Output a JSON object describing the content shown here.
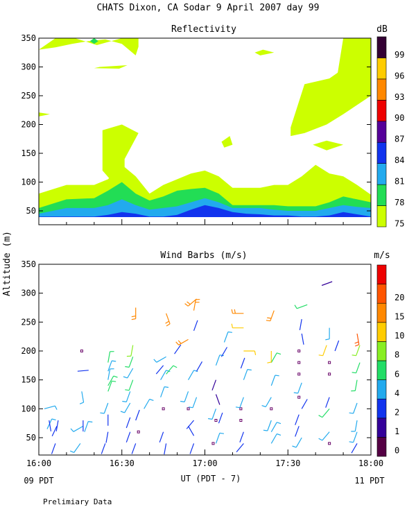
{
  "title": "CHATS Dixon, CA  Sodar   9 April 2007  day  99",
  "y_axis_label": "Altitude (m)",
  "footer": "Prelimiary Data",
  "chart_data": [
    {
      "type": "heatmap",
      "title": "Reflectivity",
      "units_label": "dB",
      "xlim": [
        "16:00",
        "18:00"
      ],
      "ylim": [
        25,
        350
      ],
      "y_ticks": [
        "50",
        "100",
        "150",
        "200",
        "250",
        "300",
        "350"
      ],
      "colorbar": {
        "labels": [
          "75",
          "78",
          "81",
          "84",
          "87",
          "90",
          "93",
          "96",
          "99"
        ],
        "colors": [
          "#ccff00",
          "#22dd55",
          "#22aaee",
          "#1133ee",
          "#550099",
          "#ee0000",
          "#ff8800",
          "#ffcc00",
          "#330033"
        ]
      },
      "profile_times_min": [
        0,
        10,
        20,
        25,
        30,
        35,
        40,
        45,
        50,
        55,
        60,
        65,
        70,
        75,
        80,
        85,
        90,
        95,
        100,
        105,
        110,
        115,
        120
      ],
      "level_tops_m": [
        {
          "level": "75",
          "values": [
            80,
            95,
            95,
            105,
            130,
            110,
            80,
            95,
            105,
            115,
            120,
            110,
            90,
            90,
            90,
            95,
            95,
            110,
            130,
            115,
            110,
            95,
            78
          ]
        },
        {
          "level": "78",
          "values": [
            55,
            70,
            72,
            85,
            100,
            80,
            68,
            75,
            85,
            88,
            90,
            80,
            60,
            60,
            60,
            60,
            58,
            58,
            58,
            65,
            75,
            70,
            65
          ]
        },
        {
          "level": "81",
          "values": [
            45,
            55,
            55,
            60,
            70,
            60,
            52,
            55,
            58,
            65,
            72,
            65,
            55,
            55,
            55,
            52,
            50,
            50,
            50,
            55,
            60,
            57,
            55
          ]
        },
        {
          "level": "84",
          "values": [
            40,
            40,
            40,
            43,
            48,
            45,
            40,
            40,
            43,
            52,
            60,
            55,
            48,
            45,
            44,
            42,
            42,
            40,
            40,
            42,
            48,
            44,
            40
          ]
        }
      ],
      "patches_75dB": [
        {
          "t_min": [
            0,
            6,
            13,
            21,
            30,
            36,
            36,
            35,
            30,
            24,
            18,
            12,
            6,
            0
          ],
          "alt_m": [
            330,
            350,
            350,
            338,
            350,
            350,
            335,
            320,
            340,
            348,
            345,
            340,
            334,
            330
          ]
        },
        {
          "t_min": [
            22,
            32,
            29,
            20
          ],
          "alt_m": [
            300,
            303,
            297,
            298
          ]
        },
        {
          "t_min": [
            0,
            4,
            0
          ],
          "alt_m": [
            221,
            218,
            214
          ]
        },
        {
          "t_min": [
            23,
            30,
            36,
            31,
            31,
            27,
            23,
            23
          ],
          "alt_m": [
            190,
            200,
            185,
            140,
            105,
            98,
            120,
            175
          ]
        },
        {
          "t_min": [
            66,
            69,
            70,
            67
          ],
          "alt_m": [
            170,
            180,
            165,
            160
          ]
        },
        {
          "t_min": [
            78,
            81,
            85,
            80
          ],
          "alt_m": [
            325,
            330,
            325,
            320
          ]
        },
        {
          "t_min": [
            91,
            96,
            105,
            108,
            110,
            120,
            120,
            110,
            104,
            96,
            91
          ],
          "alt_m": [
            195,
            270,
            280,
            290,
            350,
            350,
            250,
            218,
            200,
            185,
            180
          ]
        },
        {
          "t_min": [
            99,
            104,
            110,
            104
          ],
          "alt_m": [
            165,
            172,
            165,
            155
          ]
        }
      ],
      "patches_78dB": [
        {
          "t_min": [
            18.5,
            20,
            21.5,
            20
          ],
          "alt_m": [
            345,
            352,
            345,
            340
          ]
        }
      ]
    },
    {
      "type": "scatter",
      "title": "Wind Barbs (m/s)",
      "units_label": "m/s",
      "xlim": [
        "16:00",
        "18:00"
      ],
      "ylim": [
        25,
        350
      ],
      "x_ticks": [
        "16:00",
        "16:30",
        "17:00",
        "17:30",
        "18:00"
      ],
      "y_ticks": [
        "50",
        "100",
        "150",
        "200",
        "250",
        "300",
        "350"
      ],
      "x_axis_label": "UT  (PDT - 7)",
      "time_left": "09 PDT",
      "time_right": "11 PDT",
      "colorbar": {
        "labels": [
          "0",
          "1",
          "2",
          "4",
          "6",
          "8",
          "10",
          "15",
          "20"
        ],
        "colors": [
          "#550044",
          "#330099",
          "#1133ee",
          "#22aaee",
          "#22dd66",
          "#88ee22",
          "#ffcc00",
          "#ff8800",
          "#ff5500",
          "#ee0000"
        ]
      },
      "barbs": [
        [
          2,
          100,
          75,
          3
        ],
        [
          3,
          65,
          25,
          3
        ],
        [
          3.7,
          80,
          170,
          2
        ],
        [
          6,
          40,
          200,
          2
        ],
        [
          6.5,
          70,
          205,
          2
        ],
        [
          7,
          80,
          190,
          2
        ],
        [
          14,
          165,
          85,
          2
        ],
        [
          15,
          40,
          215,
          3
        ],
        [
          15.5,
          130,
          170,
          3
        ],
        [
          16,
          70,
          240,
          3
        ],
        [
          16.5,
          60,
          20,
          3
        ],
        [
          15.5,
          200,
          0,
          0
        ],
        [
          16,
          80,
          180,
          2
        ],
        [
          24,
          40,
          200,
          2
        ],
        [
          25,
          180,
          10,
          4
        ],
        [
          25,
          165,
          20,
          3
        ],
        [
          25,
          150,
          10,
          3
        ],
        [
          25,
          140,
          30,
          4
        ],
        [
          25,
          130,
          20,
          4
        ],
        [
          25,
          110,
          200,
          3
        ],
        [
          25,
          90,
          180,
          2
        ],
        [
          25,
          60,
          190,
          2
        ],
        [
          33,
          60,
          200,
          2
        ],
        [
          33,
          85,
          200,
          2
        ],
        [
          33,
          110,
          210,
          3
        ],
        [
          33,
          130,
          200,
          3
        ],
        [
          34,
          150,
          200,
          4
        ],
        [
          34,
          170,
          210,
          3
        ],
        [
          34,
          190,
          200,
          4
        ],
        [
          34,
          210,
          190,
          5
        ],
        [
          35,
          275,
          180,
          7
        ],
        [
          35,
          80,
          20,
          2
        ],
        [
          35,
          40,
          200,
          2
        ],
        [
          36,
          60,
          0,
          0
        ],
        [
          38,
          100,
          30,
          3
        ],
        [
          44,
          150,
          30,
          3
        ],
        [
          44,
          120,
          20,
          3
        ],
        [
          45,
          100,
          0,
          0
        ],
        [
          45,
          60,
          200,
          2
        ],
        [
          46,
          40,
          190,
          2
        ],
        [
          45,
          175,
          220,
          2
        ],
        [
          46,
          160,
          40,
          4
        ],
        [
          46,
          190,
          240,
          3
        ],
        [
          46,
          265,
          160,
          7
        ],
        [
          49,
          195,
          35,
          2
        ],
        [
          54,
          100,
          0,
          0
        ],
        [
          54,
          70,
          150,
          2
        ],
        [
          54,
          130,
          200,
          3
        ],
        [
          54,
          150,
          30,
          3
        ],
        [
          54,
          220,
          240,
          7
        ],
        [
          56,
          80,
          220,
          2
        ],
        [
          56,
          40,
          200,
          2
        ],
        [
          57,
          165,
          30,
          2
        ],
        [
          57,
          120,
          200,
          3
        ],
        [
          56,
          235,
          20,
          2
        ],
        [
          56,
          270,
          10,
          7
        ],
        [
          57,
          290,
          230,
          7
        ],
        [
          63,
          40,
          0,
          0
        ],
        [
          64,
          40,
          20,
          3
        ],
        [
          64,
          80,
          0,
          0
        ],
        [
          64,
          100,
          200,
          3
        ],
        [
          64,
          125,
          160,
          1
        ],
        [
          64,
          150,
          200,
          1
        ],
        [
          64,
          175,
          20,
          3
        ],
        [
          66,
          190,
          30,
          2
        ],
        [
          67,
          215,
          20,
          3
        ],
        [
          65,
          75,
          20,
          2
        ],
        [
          73,
          80,
          0,
          0
        ],
        [
          73,
          100,
          0,
          0
        ],
        [
          74,
          120,
          200,
          3
        ],
        [
          74,
          150,
          20,
          3
        ],
        [
          74,
          60,
          200,
          2
        ],
        [
          74,
          40,
          220,
          2
        ],
        [
          73,
          170,
          20,
          2
        ],
        [
          74,
          200,
          90,
          6
        ],
        [
          74,
          240,
          270,
          6
        ],
        [
          74,
          265,
          270,
          7
        ],
        [
          84,
          100,
          0,
          0
        ],
        [
          84,
          120,
          210,
          3
        ],
        [
          84,
          140,
          20,
          3
        ],
        [
          84,
          180,
          30,
          4
        ],
        [
          84,
          200,
          180,
          6
        ],
        [
          84,
          80,
          200,
          3
        ],
        [
          84,
          60,
          30,
          3
        ],
        [
          84,
          40,
          30,
          3
        ],
        [
          85,
          270,
          200,
          7
        ],
        [
          94,
          200,
          0,
          0
        ],
        [
          94,
          180,
          0,
          0
        ],
        [
          94,
          160,
          0,
          0
        ],
        [
          94,
          120,
          0,
          0
        ],
        [
          94,
          90,
          200,
          2
        ],
        [
          94,
          70,
          200,
          2
        ],
        [
          95,
          50,
          210,
          3
        ],
        [
          95,
          145,
          200,
          3
        ],
        [
          95,
          100,
          30,
          2
        ],
        [
          95,
          230,
          170,
          2
        ],
        [
          95,
          255,
          190,
          2
        ],
        [
          97,
          280,
          250,
          4
        ],
        [
          105,
          180,
          0,
          0
        ],
        [
          105,
          160,
          0,
          0
        ],
        [
          105,
          40,
          0,
          0
        ],
        [
          105,
          120,
          200,
          2
        ],
        [
          105,
          100,
          220,
          4
        ],
        [
          105,
          60,
          220,
          3
        ],
        [
          104,
          210,
          200,
          6
        ],
        [
          105,
          240,
          180,
          3
        ],
        [
          106,
          320,
          250,
          1
        ],
        [
          107,
          200,
          20,
          2
        ],
        [
          115,
          40,
          210,
          2
        ],
        [
          115,
          60,
          200,
          3
        ],
        [
          115,
          80,
          190,
          3
        ],
        [
          115,
          110,
          200,
          3
        ],
        [
          115,
          150,
          190,
          4
        ],
        [
          116,
          180,
          200,
          4
        ],
        [
          116,
          210,
          200,
          5
        ],
        [
          115,
          230,
          170,
          8
        ],
        [
          114,
          225,
          210,
          10
        ]
      ]
    }
  ]
}
